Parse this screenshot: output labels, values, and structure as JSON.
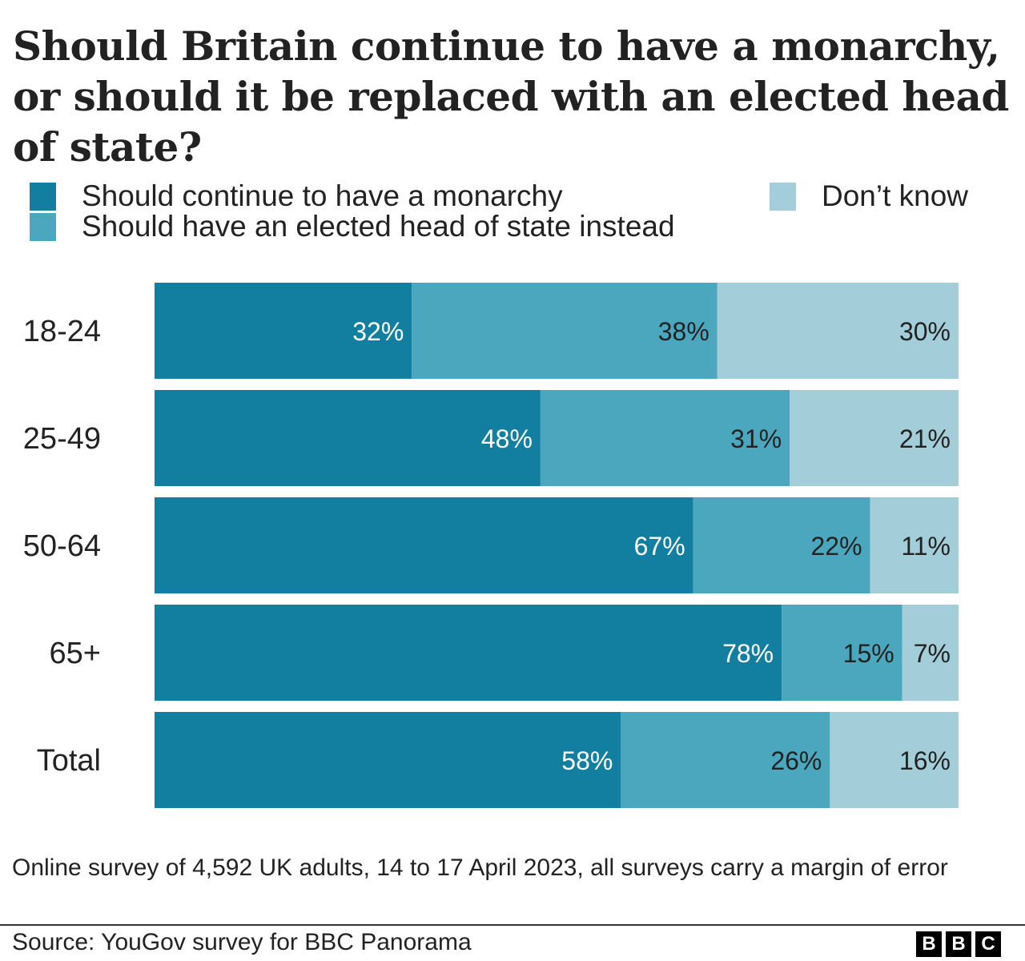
{
  "chart_data": {
    "type": "bar",
    "orientation": "horizontal",
    "stacked": true,
    "title": "Should Britain continue to have a monarchy, or should it be replaced with an elected head of state?",
    "categories": [
      "18-24",
      "25-49",
      "50-64",
      "65+",
      "Total"
    ],
    "series": [
      {
        "name": "Should continue to have a monarchy",
        "color": "#137fa0",
        "label_color": "#ffffff",
        "values": [
          32,
          48,
          67,
          78,
          58
        ]
      },
      {
        "name": "Should have an elected head of state instead",
        "color": "#4aa7bd",
        "label_color": "#222222",
        "values": [
          38,
          31,
          22,
          15,
          26
        ]
      },
      {
        "name": "Don’t know",
        "color": "#a3cdd9",
        "label_color": "#222222",
        "values": [
          30,
          21,
          11,
          7,
          16
        ]
      }
    ],
    "value_suffix": "%",
    "xlim": [
      0,
      100
    ],
    "grid": false,
    "legend_position": "top"
  },
  "footer": {
    "note": "Online survey of 4,592 UK adults, 14 to 17 April 2023, all surveys carry a margin of error",
    "source": "Source: YouGov survey for BBC Panorama",
    "logo": [
      "B",
      "B",
      "C"
    ]
  }
}
